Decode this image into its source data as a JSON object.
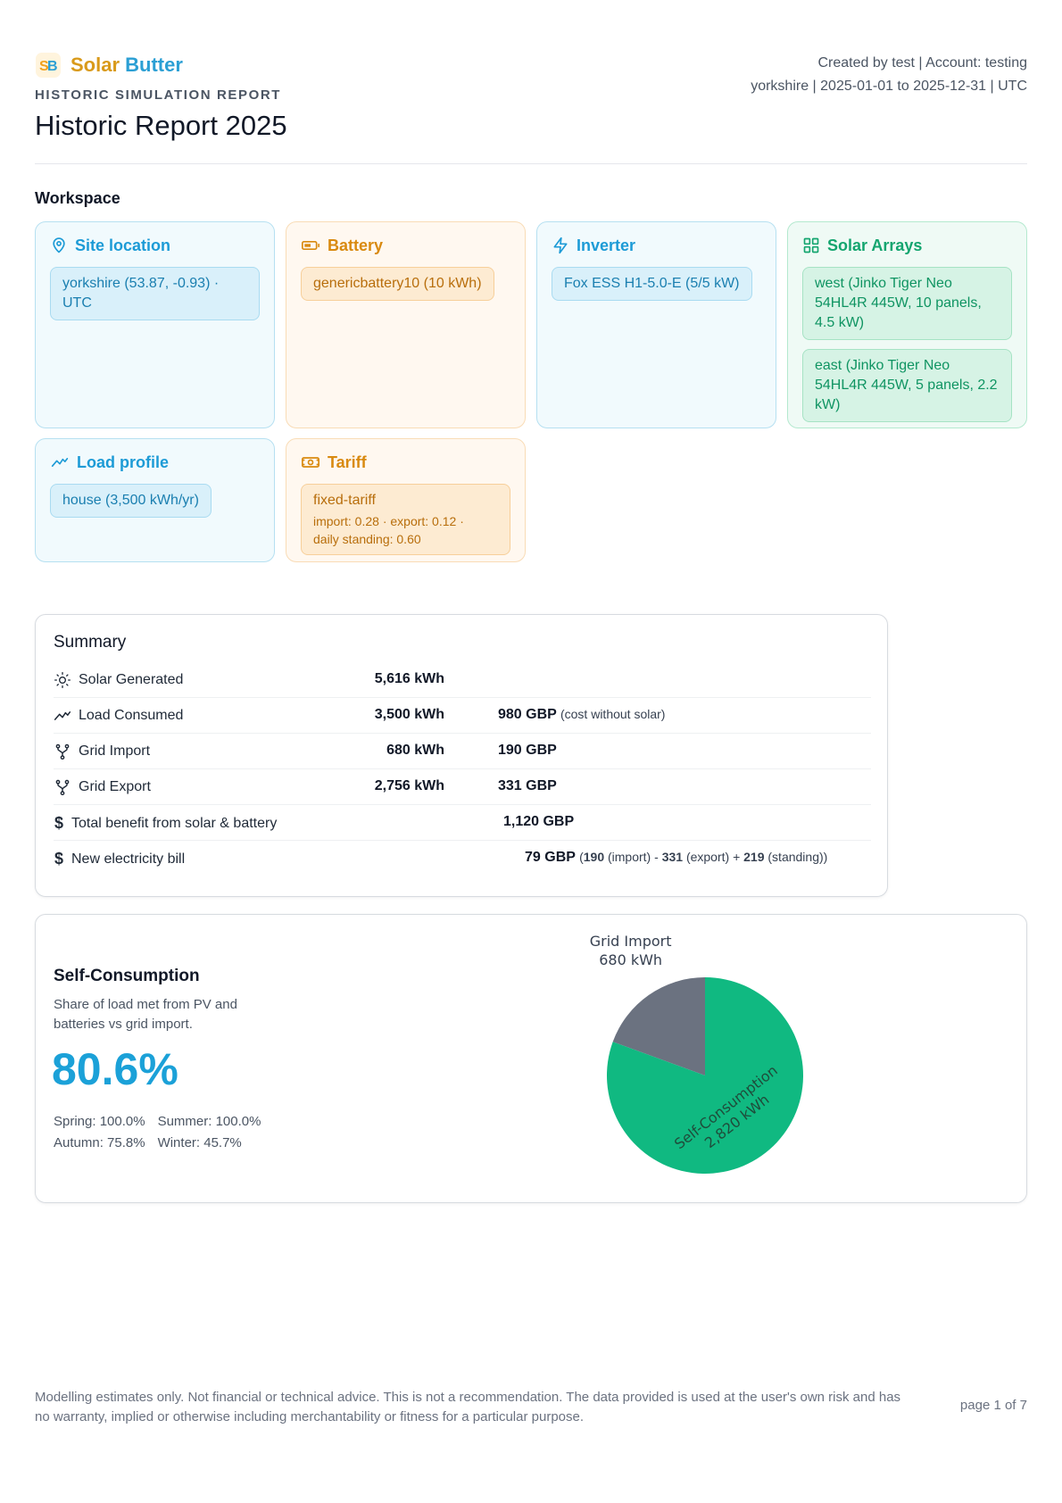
{
  "brand": {
    "solar": "Solar",
    "butter": "Butter"
  },
  "header": {
    "kicker": "HISTORIC SIMULATION REPORT",
    "title": "Historic Report 2025",
    "meta_line1": "Created by test | Account: testing",
    "meta_line2": "yorkshire | 2025-01-01 to 2025-12-31 | UTC"
  },
  "workspace": {
    "title": "Workspace",
    "site": {
      "title": "Site location",
      "icon": "map-pin-icon",
      "value": "yorkshire (53.87, -0.93) · UTC"
    },
    "battery": {
      "title": "Battery",
      "icon": "battery-icon",
      "value": "genericbattery10 (10 kWh)"
    },
    "inverter": {
      "title": "Inverter",
      "icon": "lightning-icon",
      "value": "Fox ESS H1-5.0-E (5/5 kW)"
    },
    "arrays": {
      "title": "Solar Arrays",
      "icon": "grid-icon",
      "items": [
        "west (Jinko Tiger Neo 54HL4R 445W, 10 panels, 4.5 kW)",
        "east (Jinko Tiger Neo 54HL4R 445W, 5 panels, 2.2 kW)"
      ]
    },
    "load": {
      "title": "Load profile",
      "icon": "trend-icon",
      "value": "house (3,500 kWh/yr)"
    },
    "tariff": {
      "title": "Tariff",
      "icon": "banknote-icon",
      "value": "fixed-tariff",
      "detail_line1": "import: 0.28 · export: 0.12 ·",
      "detail_line2": "daily standing: 0.60"
    }
  },
  "summary": {
    "title": "Summary",
    "rows": [
      {
        "label": "Solar Generated",
        "icon": "sun-icon",
        "kwh": "5,616 kWh",
        "gbp": "",
        "note": ""
      },
      {
        "label": "Load Consumed",
        "icon": "trend-icon",
        "kwh": "3,500 kWh",
        "gbp": "980 GBP",
        "note": "(cost without solar)"
      },
      {
        "label": "Grid Import",
        "icon": "grid-fork-icon",
        "kwh": "680 kWh",
        "gbp": "190 GBP",
        "note": ""
      },
      {
        "label": "Grid Export",
        "icon": "grid-fork-icon",
        "kwh": "2,756 kWh",
        "gbp": "331 GBP",
        "note": ""
      },
      {
        "label": "Total benefit from solar & battery",
        "icon": "dollar-icon",
        "kwh": "",
        "gbp": "1,120 GBP",
        "note": ""
      },
      {
        "label": "New electricity bill",
        "icon": "dollar-icon",
        "kwh": "",
        "gbp": "79 GBP"
      }
    ],
    "bill": {
      "open": "(",
      "import_val": "190",
      "import_lbl": "(import)",
      "minus": "-",
      "export_val": "331",
      "export_lbl": "(export)",
      "plus": "+",
      "standing_val": "219",
      "standing_lbl": "(standing))"
    }
  },
  "self_consumption": {
    "title": "Self-Consumption",
    "subtitle": "Share of load met from PV and batteries vs grid import.",
    "percent": "80.6%",
    "spring": "Spring: 100.0%",
    "summer": "Summer: 100.0%",
    "autumn": "Autumn: 75.8%",
    "winter": "Winter: 45.7%"
  },
  "chart_data": {
    "type": "pie",
    "categories": [
      "Grid Import",
      "Self-Consumption"
    ],
    "values": [
      680,
      2820
    ],
    "labels": [
      "680 kWh",
      "2,820 kWh"
    ],
    "colors": [
      "#6b7280",
      "#10b981"
    ]
  },
  "footer": {
    "disclaimer": "Modelling estimates only. Not financial or technical advice. This is not a recommendation. The data provided is used at the user's own risk and has no warranty, implied or otherwise including merchantability or fitness for a particular purpose.",
    "page": "page 1 of 7"
  }
}
